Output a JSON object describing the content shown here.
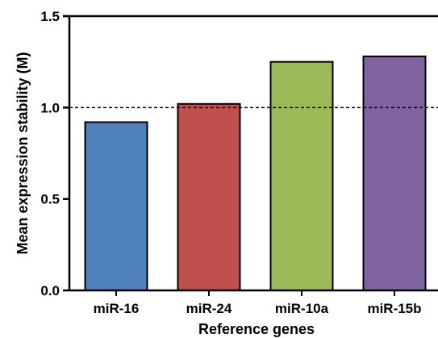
{
  "chart_data": {
    "type": "bar",
    "categories": [
      "miR-16",
      "miR-24",
      "miR-10a",
      "miR-15b"
    ],
    "values": [
      0.92,
      1.02,
      1.25,
      1.28
    ],
    "colors": [
      "#4f81bd",
      "#c0504d",
      "#9bbb59",
      "#8064a2"
    ],
    "xlabel": "Reference genes",
    "ylabel": "Mean expression stability (M)",
    "ylim": [
      0,
      1.5
    ],
    "yticks": [
      "0.0",
      "0.5",
      "1.0",
      "1.5"
    ],
    "reference_line": 1.0,
    "grid": false
  }
}
